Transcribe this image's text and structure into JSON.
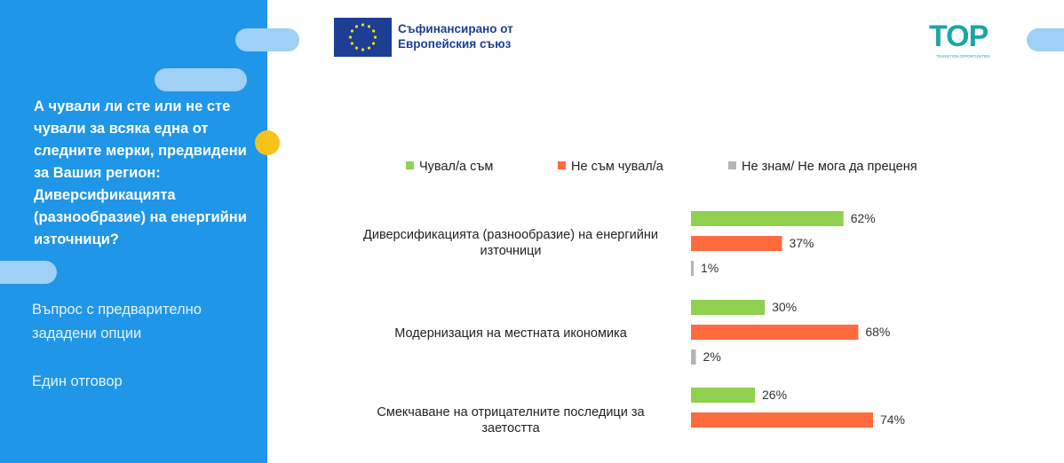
{
  "sidebar": {
    "question": "А чували ли сте или не сте чували за всяка една от следните мерки, предвидени за Вашия регион: Диверсификацията (разнообразие) на енергийни източници?",
    "question_type_line1": "Въпрос с предварително",
    "question_type_line2": "зададени опции",
    "answer_type": "Един отговор"
  },
  "header": {
    "eu_line1": "Съфинансирано от",
    "eu_line2": "Европейския съюз",
    "top_logo_text": "TOP",
    "top_logo_sub": "TRANSITION OPPORTUNITIES"
  },
  "colors": {
    "sidebar": "#1f96e8",
    "heard": "#8fd14f",
    "not_heard": "#ff6b3d",
    "dont_know": "#b4b4b4"
  },
  "chart_data": {
    "type": "bar",
    "orientation": "horizontal",
    "categories": [
      "Диверсификацията (разнообразие) на енергийни източници",
      "Модернизация на местната икономика",
      "Смекчаване на отрицателните последици за заетостта"
    ],
    "series": [
      {
        "name": "Чувал/а съм",
        "values": [
          62,
          30,
          26
        ]
      },
      {
        "name": "Не съм чувал/а",
        "values": [
          37,
          68,
          74
        ]
      },
      {
        "name": "Не знам/ Не мога да преценя",
        "values": [
          1,
          2,
          null
        ]
      }
    ],
    "unit": "%",
    "xlim": [
      0,
      100
    ],
    "legend_position": "top",
    "grid": false
  }
}
